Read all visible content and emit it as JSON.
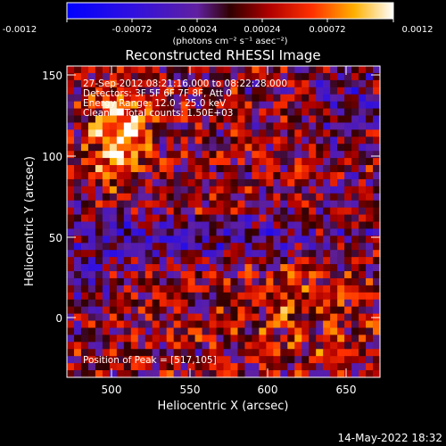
{
  "colorbar": {
    "ticks": [
      "-0.0012",
      "-0.00072",
      "-0.00024",
      "0.00024",
      "0.00072",
      "0.0012"
    ],
    "unit_label": "(photons cm⁻² s⁻¹ asec⁻²)"
  },
  "plot": {
    "title": "Reconstructed RHESSI Image",
    "xlabel": "Heliocentric X (arcsec)",
    "ylabel": "Heliocentric Y (arcsec)",
    "xticks": [
      "500",
      "550",
      "600",
      "650"
    ],
    "yticks": [
      "0",
      "50",
      "100",
      "150"
    ]
  },
  "info": {
    "line1": "27-Sep-2012 08:21:16.000 to 08:22:28.000",
    "line2": "Detectors: 3F 5F 6F 7F 8F, Att 0",
    "line3": "Energy Range: 12.0 - 25.0 keV",
    "line4": "Clean     Total counts: 1.50E+03",
    "peak": "Position of Peak = [517,105]"
  },
  "footer": {
    "date": "14-May-2022 18:32"
  }
}
